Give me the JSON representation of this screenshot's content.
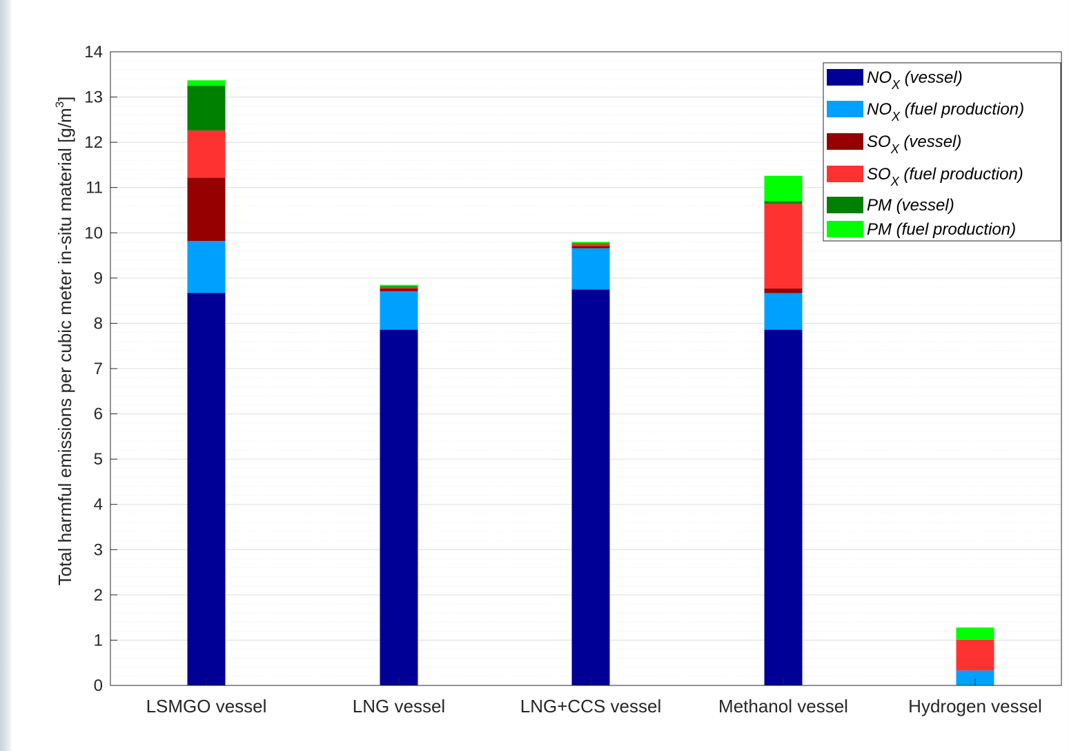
{
  "chart_data": {
    "type": "bar",
    "stacked": true,
    "title": "",
    "xlabel": "",
    "ylabel": "Total harmful emissions per cubic meter in-situ material [g/m",
    "ylabel_sup": "3",
    "ylabel_end": "]",
    "ylim": [
      0,
      14
    ],
    "yticks": [
      "0",
      "1",
      "2",
      "3",
      "4",
      "5",
      "6",
      "7",
      "8",
      "9",
      "10",
      "11",
      "12",
      "13",
      "14"
    ],
    "grid": "on (major and minor horizontal)",
    "legend_position": "top-right",
    "categories": [
      "LSMGO vessel",
      "LNG vessel",
      "LNG+CCS vessel",
      "Methanol vessel",
      "Hydrogen vessel"
    ],
    "series": [
      {
        "name": "NOX (vessel)",
        "label_main": "NO",
        "label_sub": "X",
        "label_rest": " (vessel)",
        "color": "#000096",
        "values": [
          8.67,
          7.86,
          8.75,
          7.86,
          0.0
        ]
      },
      {
        "name": "NOX (fuel production)",
        "label_main": "NO",
        "label_sub": "X",
        "label_rest": " (fuel production)",
        "color": "#00a0ff",
        "values": [
          1.15,
          0.85,
          0.91,
          0.81,
          0.33
        ]
      },
      {
        "name": "SOX (vessel)",
        "label_main": "SO",
        "label_sub": "X",
        "label_rest": " (vessel)",
        "color": "#960000",
        "values": [
          1.4,
          0.06,
          0.05,
          0.1,
          0.0
        ]
      },
      {
        "name": "SOX (fuel production)",
        "label_main": "SO",
        "label_sub": "X",
        "label_rest": " (fuel production)",
        "color": "#ff3232",
        "values": [
          1.04,
          0.03,
          0.04,
          1.87,
          0.68
        ]
      },
      {
        "name": "PM (vessel)",
        "label_main": "PM",
        "label_sub": "",
        "label_rest": " (vessel)",
        "color": "#008000",
        "values": [
          0.99,
          0.02,
          0.02,
          0.06,
          0.0
        ]
      },
      {
        "name": "PM (fuel production)",
        "label_main": "PM",
        "label_sub": "",
        "label_rest": " (fuel production)",
        "color": "#00ff00",
        "values": [
          0.12,
          0.03,
          0.03,
          0.56,
          0.27
        ]
      }
    ]
  }
}
